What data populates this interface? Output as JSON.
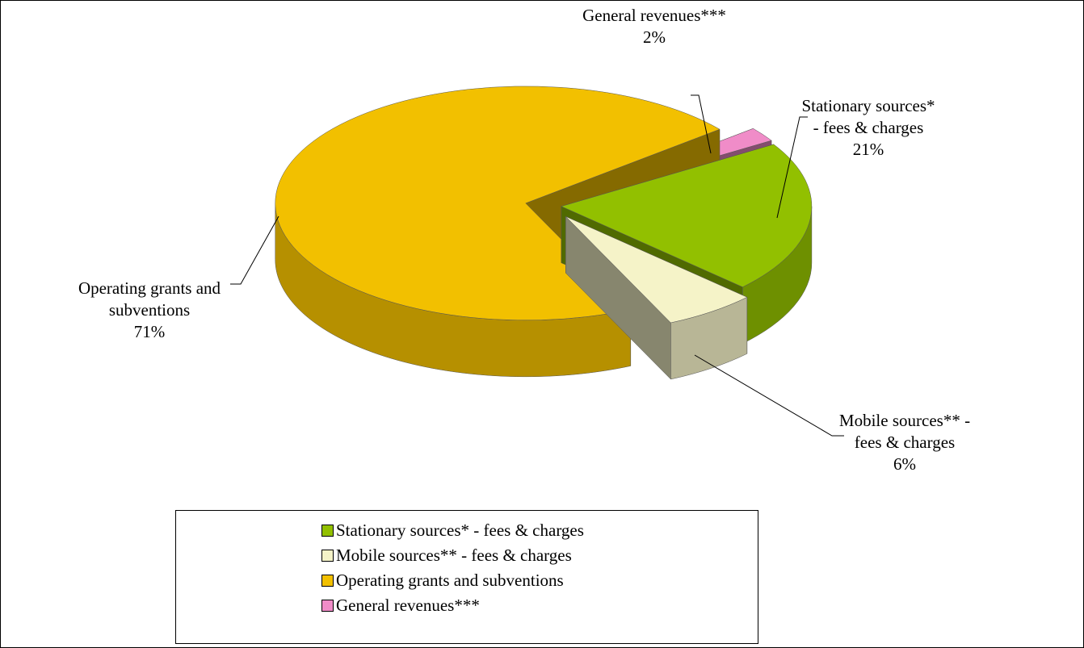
{
  "chart_data": {
    "type": "pie",
    "categories": [
      "Stationary sources* - fees & charges",
      "Mobile sources** - fees & charges",
      "Operating grants and subventions",
      "General revenues***"
    ],
    "values": [
      21,
      6,
      71,
      2
    ],
    "value_labels": [
      "21%",
      "6%",
      "71%",
      "2%"
    ],
    "colors": [
      "#92c000",
      "#f5f3c8",
      "#f2c000",
      "#f08cc8"
    ],
    "legend": "bottom"
  }
}
